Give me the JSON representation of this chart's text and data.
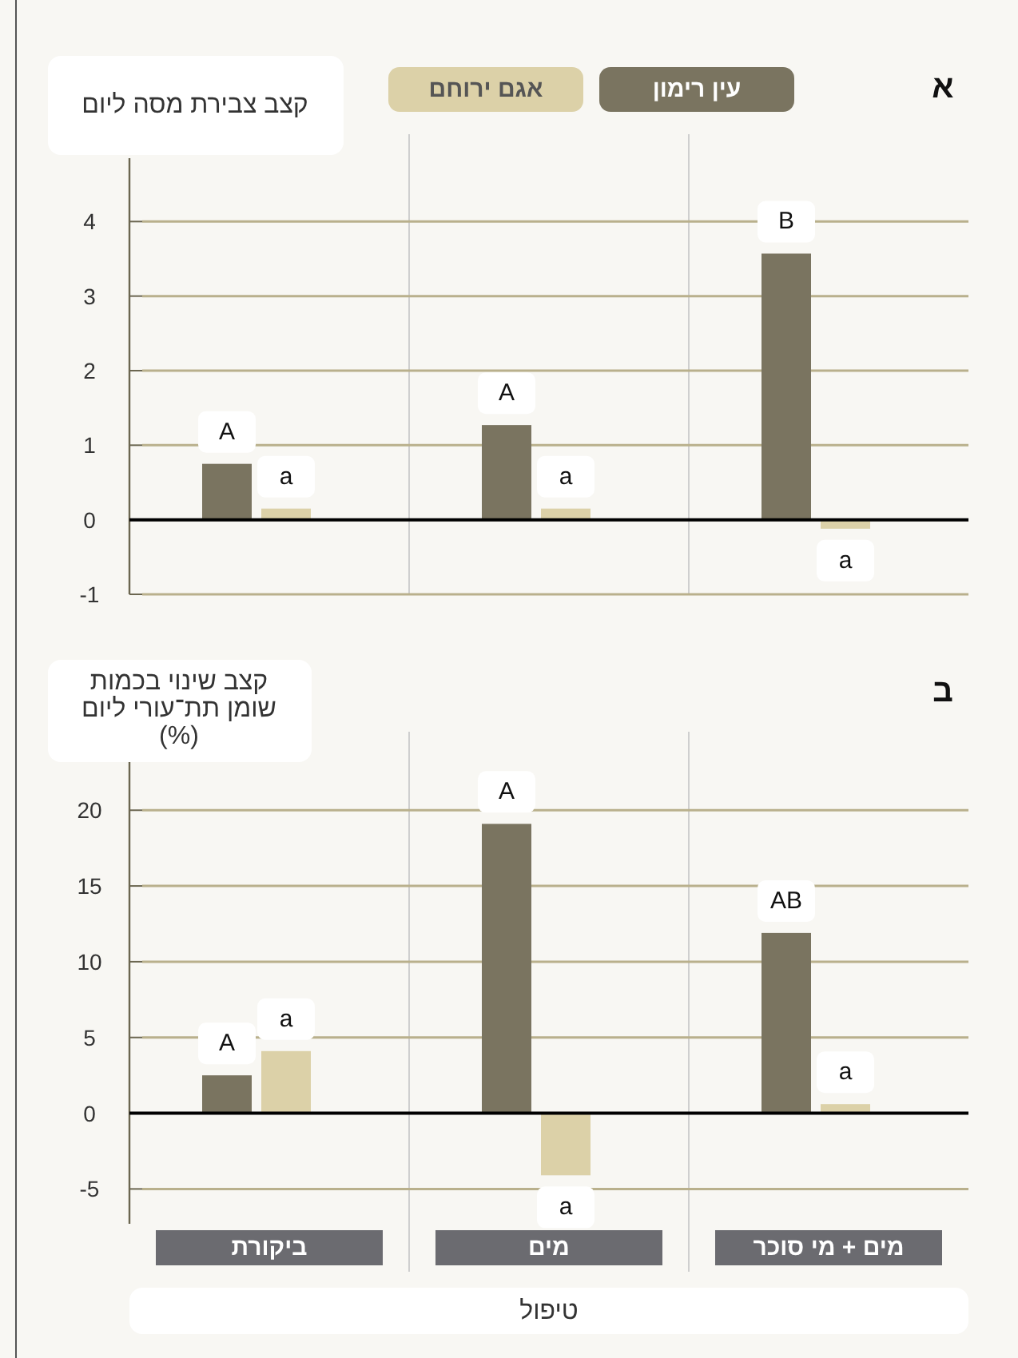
{
  "chart_data": [
    {
      "type": "bar",
      "title": "א",
      "ylabel": "קצב צבירת מסה ליום",
      "categories": [
        null,
        null,
        null
      ],
      "series": [
        {
          "name": "עין רימון",
          "color": "#7a7460",
          "values": [
            0.75,
            1.27,
            3.57
          ],
          "value_labels": [
            "A",
            "A",
            "B"
          ]
        },
        {
          "name": "אגם ירוחם",
          "color": "#dcd1a8",
          "values": [
            0.15,
            0.15,
            -0.12
          ],
          "value_labels": [
            "a",
            "a",
            "a"
          ]
        }
      ],
      "ylim": [
        -1,
        4.85
      ],
      "yticks": [
        -1,
        0,
        1,
        2,
        3,
        4
      ],
      "grid": "y",
      "legend": "top"
    },
    {
      "type": "bar",
      "title": "ב",
      "ylabel": "קצב שינוי בכמות שומן תת־עורי ליום (%)",
      "xlabel": "טיפול",
      "categories": [
        "ביקורת",
        "מים",
        "מים + מי סוכר"
      ],
      "series": [
        {
          "color": "#7a7460",
          "values": [
            2.5,
            19.1,
            11.9
          ],
          "value_labels": [
            "A",
            "A",
            "AB"
          ]
        },
        {
          "color": "#dcd1a8",
          "values": [
            4.1,
            -4.1,
            0.6
          ],
          "value_labels": [
            "a",
            "a",
            "a"
          ]
        }
      ],
      "ylim": [
        -7.3,
        23.6
      ],
      "yticks": [
        -5,
        0,
        5,
        10,
        15,
        20
      ],
      "grid": "y"
    }
  ]
}
